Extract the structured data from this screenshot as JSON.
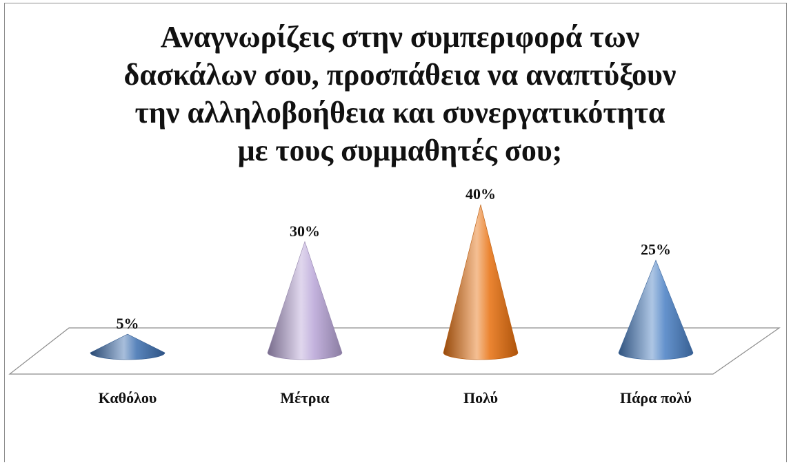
{
  "chart_data": {
    "type": "bar",
    "bar_shape": "cone",
    "title": "Αναγνωρίζεις στην συμπεριφορά των δασκάλων σου, προσπάθεια να αναπτύξουν την αλληλοβοήθεια και συνεργατικότητα με τους συμμαθητές σου;",
    "categories": [
      "Καθόλου",
      "Μέτρια",
      "Πολύ",
      "Πάρα πολύ"
    ],
    "values": [
      5,
      30,
      40,
      25
    ],
    "data_labels": [
      "5%",
      "30%",
      "40%",
      "25%"
    ],
    "unit": "%",
    "ylim": [
      0,
      40
    ],
    "grid": false,
    "legend": "none",
    "colors": [
      "#3d6fb0",
      "#b9a6d8",
      "#e8700e",
      "#4a80c4"
    ]
  }
}
